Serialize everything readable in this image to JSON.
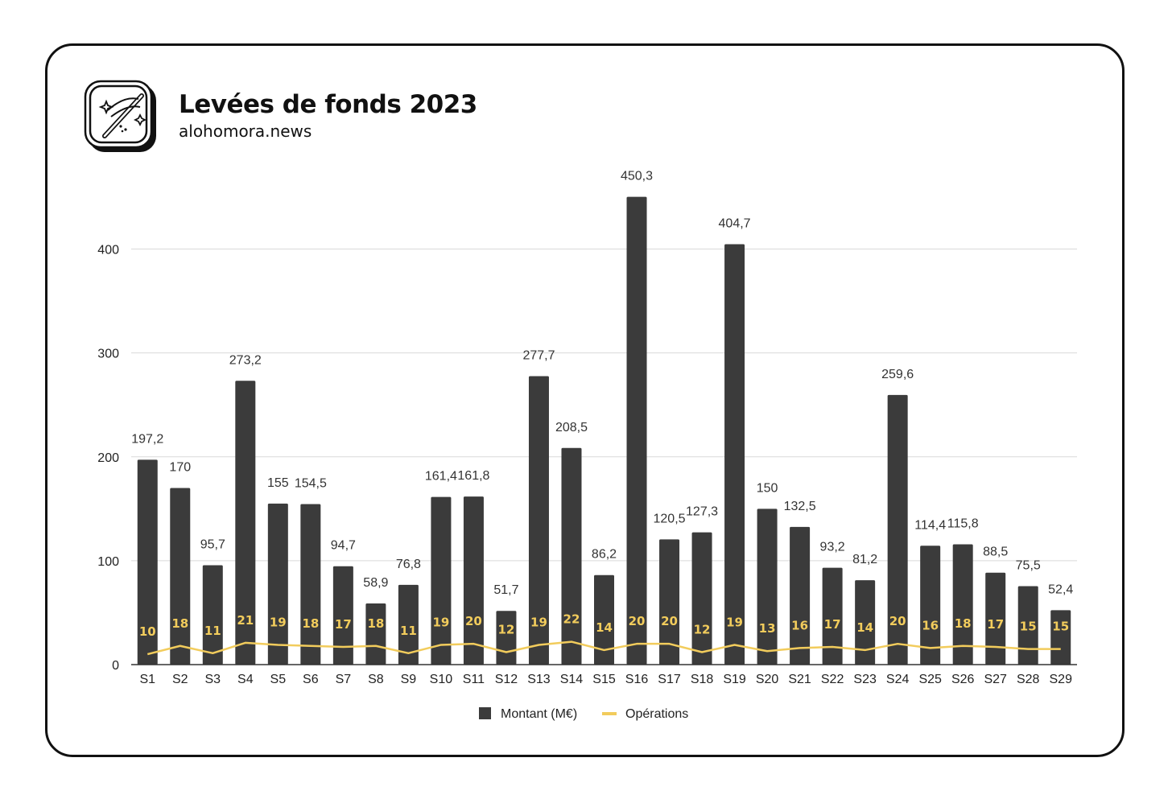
{
  "header": {
    "title": "Levées de fonds 2023",
    "subtitle": "alohomora.news",
    "logo_icon": "magic-wand-icon"
  },
  "colors": {
    "bar": "#3b3b3b",
    "line": "#f2cc5c",
    "grid": "#d9d9d9",
    "border": "#111111"
  },
  "chart_data": {
    "type": "bar",
    "title": "",
    "xlabel": "",
    "ylabel": "",
    "ylim": [
      0,
      450
    ],
    "yticks": [
      0,
      100,
      200,
      300,
      400
    ],
    "grid": true,
    "legend_position": "bottom",
    "categories": [
      "S1",
      "S2",
      "S3",
      "S4",
      "S5",
      "S6",
      "S7",
      "S8",
      "S9",
      "S10",
      "S11",
      "S12",
      "S13",
      "S14",
      "S15",
      "S16",
      "S17",
      "S18",
      "S19",
      "S20",
      "S21",
      "S22",
      "S23",
      "S24",
      "S25",
      "S26",
      "S27",
      "S28",
      "S29"
    ],
    "series": [
      {
        "name": "Montant (M€)",
        "type": "bar",
        "values": [
          197.2,
          170,
          95.7,
          273.2,
          155,
          154.5,
          94.7,
          58.9,
          76.8,
          161.4,
          161.8,
          51.7,
          277.7,
          208.5,
          86.2,
          450.3,
          120.5,
          127.3,
          404.7,
          150,
          132.5,
          93.2,
          81.2,
          259.6,
          114.4,
          115.8,
          88.5,
          75.5,
          52.4
        ],
        "labels": [
          "197,2",
          "170",
          "95,7",
          "273,2",
          "155",
          "154,5",
          "94,7",
          "58,9",
          "76,8",
          "161,4",
          "161,8",
          "51,7",
          "277,7",
          "208,5",
          "86,2",
          "450,3",
          "120,5",
          "127,3",
          "404,7",
          "150",
          "132,5",
          "93,2",
          "81,2",
          "259,6",
          "114,4",
          "115,8",
          "88,5",
          "75,5",
          "52,4"
        ]
      },
      {
        "name": "Opérations",
        "type": "line",
        "values": [
          10,
          18,
          11,
          21,
          19,
          18,
          17,
          18,
          11,
          19,
          20,
          12,
          19,
          22,
          14,
          20,
          20,
          12,
          19,
          13,
          16,
          17,
          14,
          20,
          16,
          18,
          17,
          15,
          15
        ],
        "labels": [
          "10",
          "18",
          "11",
          "21",
          "19",
          "18",
          "17",
          "18",
          "11",
          "19",
          "20",
          "12",
          "19",
          "22",
          "14",
          "20",
          "20",
          "12",
          "19",
          "13",
          "16",
          "17",
          "14",
          "20",
          "16",
          "18",
          "17",
          "15",
          "15"
        ]
      }
    ]
  }
}
